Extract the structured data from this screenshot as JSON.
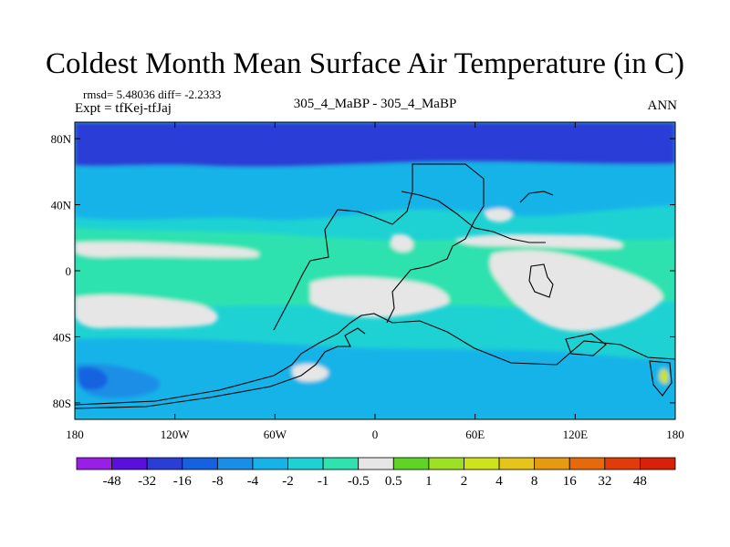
{
  "chart_data": {
    "type": "heatmap",
    "title": "Coldest Month Mean Surface Air Temperature (in C)",
    "stats_text": "rmsd= 5.48036  diff= -2.2333",
    "experiment_text": "Expt = tfKej-tfJaj",
    "center_text": "305_4_MaBP - 305_4_MaBP",
    "season": "ANN",
    "x_ticks": [
      "180",
      "120W",
      "60W",
      "0",
      "60E",
      "120E",
      "180"
    ],
    "y_ticks": [
      "80N",
      "40N",
      "0",
      "40S",
      "80S"
    ],
    "x_range": [
      -180,
      180
    ],
    "y_range": [
      -90,
      90
    ],
    "colorbar": {
      "labels": [
        "-48",
        "-32",
        "-16",
        "-8",
        "-4",
        "-2",
        "-1",
        "-0.5",
        "0.5",
        "1",
        "2",
        "4",
        "8",
        "16",
        "32",
        "48"
      ],
      "colors": [
        "#9a1fe6",
        "#5a10dc",
        "#2a3ed6",
        "#1462e0",
        "#1a8ee6",
        "#17b3e8",
        "#1ed2d4",
        "#2fe2b0",
        "#e6e6e6",
        "#5fd426",
        "#9ee024",
        "#cfe21e",
        "#e6c41c",
        "#e69a12",
        "#e66a0c",
        "#e03c0a",
        "#d8200a"
      ]
    }
  }
}
